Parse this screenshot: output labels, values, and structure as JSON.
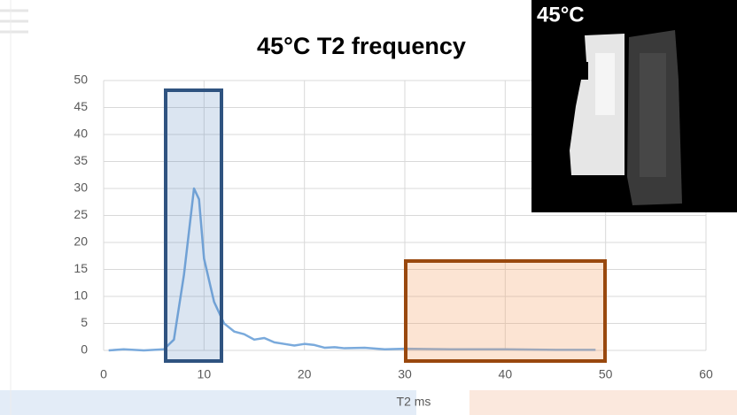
{
  "chart_data": {
    "type": "line",
    "title": "45°C T2 frequency",
    "x_label": "T2 ms",
    "x": [
      0.5,
      2,
      4,
      6,
      7,
      8,
      9,
      9.5,
      10,
      11,
      12,
      13,
      14,
      15,
      16,
      17,
      18,
      19,
      20,
      21,
      22,
      23,
      24,
      26,
      28,
      30,
      35,
      40,
      45,
      49
    ],
    "series": [
      {
        "name": "45°C",
        "color": "#7aaadc",
        "values": [
          0,
          0.2,
          0,
          0.2,
          2,
          14,
          30,
          28,
          17,
          9,
          5,
          3.5,
          3,
          2,
          2.3,
          1.5,
          1.2,
          0.9,
          1.2,
          1,
          0.5,
          0.6,
          0.4,
          0.5,
          0.2,
          0.3,
          0.2,
          0.2,
          0.1,
          0.1
        ]
      }
    ],
    "xlim": [
      0,
      60
    ],
    "xticks": [
      0,
      10,
      20,
      30,
      40,
      50,
      60
    ],
    "ylim": [
      0,
      50
    ],
    "yticks": [
      0,
      5,
      10,
      15,
      20,
      25,
      30,
      35,
      40,
      45,
      50
    ],
    "grid": true,
    "inset_label": "45°C"
  }
}
